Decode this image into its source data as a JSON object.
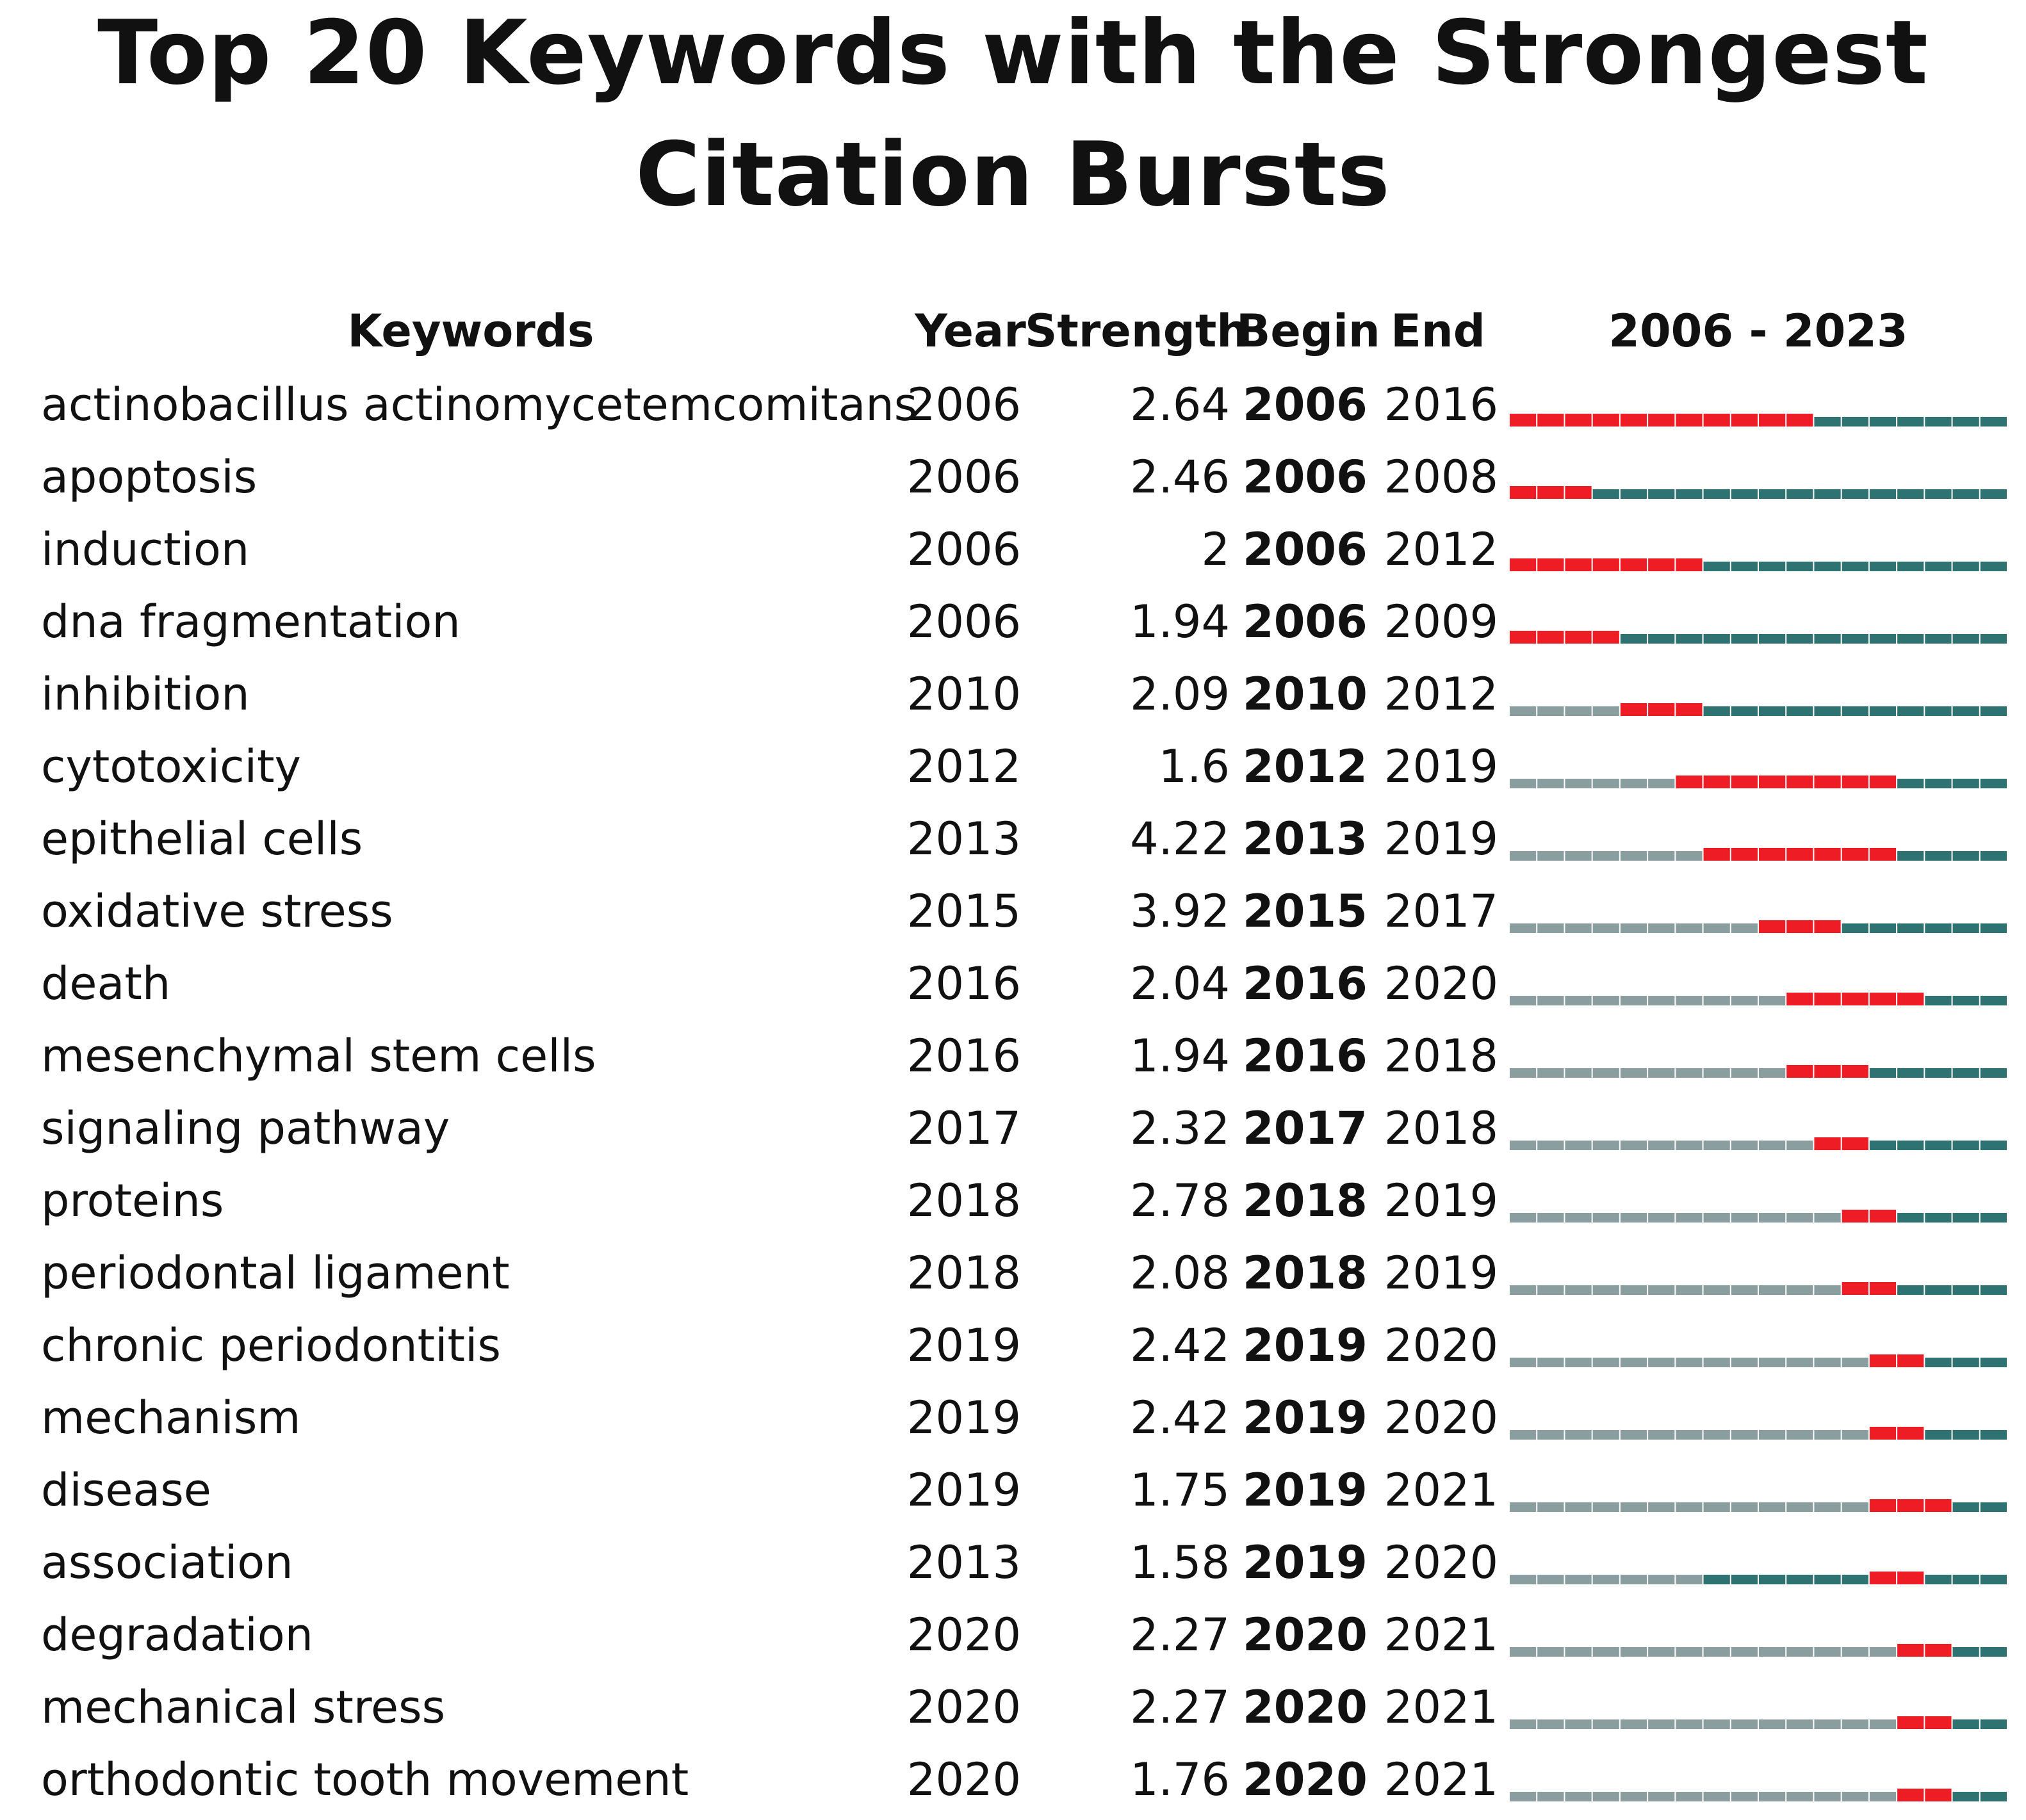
{
  "chart_data": {
    "type": "table",
    "title": "Top 20 Keywords with the Strongest Citation Bursts",
    "title_lines": [
      "Top 20 Keywords with the Strongest",
      "Citation Bursts"
    ],
    "columns": [
      "Keywords",
      "Year",
      "Strength",
      "Begin",
      "End",
      "2006 - 2023"
    ],
    "range_start": 2006,
    "range_end": 2023,
    "colors": {
      "pre": "#8a9ea0",
      "post": "#2e7272",
      "burst": "#ee1c24"
    },
    "rows": [
      {
        "keyword": "actinobacillus actinomycetemcomitans",
        "year": "2006",
        "strength": "2.64",
        "begin": "2006",
        "end": "2016"
      },
      {
        "keyword": "apoptosis",
        "year": "2006",
        "strength": "2.46",
        "begin": "2006",
        "end": "2008"
      },
      {
        "keyword": "induction",
        "year": "2006",
        "strength": "2",
        "begin": "2006",
        "end": "2012"
      },
      {
        "keyword": "dna fragmentation",
        "year": "2006",
        "strength": "1.94",
        "begin": "2006",
        "end": "2009"
      },
      {
        "keyword": "inhibition",
        "year": "2010",
        "strength": "2.09",
        "begin": "2010",
        "end": "2012"
      },
      {
        "keyword": "cytotoxicity",
        "year": "2012",
        "strength": "1.6",
        "begin": "2012",
        "end": "2019"
      },
      {
        "keyword": "epithelial cells",
        "year": "2013",
        "strength": "4.22",
        "begin": "2013",
        "end": "2019"
      },
      {
        "keyword": "oxidative stress",
        "year": "2015",
        "strength": "3.92",
        "begin": "2015",
        "end": "2017"
      },
      {
        "keyword": "death",
        "year": "2016",
        "strength": "2.04",
        "begin": "2016",
        "end": "2020"
      },
      {
        "keyword": "mesenchymal stem cells",
        "year": "2016",
        "strength": "1.94",
        "begin": "2016",
        "end": "2018"
      },
      {
        "keyword": "signaling pathway",
        "year": "2017",
        "strength": "2.32",
        "begin": "2017",
        "end": "2018"
      },
      {
        "keyword": "proteins",
        "year": "2018",
        "strength": "2.78",
        "begin": "2018",
        "end": "2019"
      },
      {
        "keyword": "periodontal ligament",
        "year": "2018",
        "strength": "2.08",
        "begin": "2018",
        "end": "2019"
      },
      {
        "keyword": "chronic periodontitis",
        "year": "2019",
        "strength": "2.42",
        "begin": "2019",
        "end": "2020"
      },
      {
        "keyword": "mechanism",
        "year": "2019",
        "strength": "2.42",
        "begin": "2019",
        "end": "2020"
      },
      {
        "keyword": "disease",
        "year": "2019",
        "strength": "1.75",
        "begin": "2019",
        "end": "2021"
      },
      {
        "keyword": "association",
        "year": "2013",
        "strength": "1.58",
        "begin": "2019",
        "end": "2020"
      },
      {
        "keyword": "degradation",
        "year": "2020",
        "strength": "2.27",
        "begin": "2020",
        "end": "2021"
      },
      {
        "keyword": "mechanical stress",
        "year": "2020",
        "strength": "2.27",
        "begin": "2020",
        "end": "2021"
      },
      {
        "keyword": "orthodontic tooth movement",
        "year": "2020",
        "strength": "1.76",
        "begin": "2020",
        "end": "2021"
      }
    ]
  }
}
